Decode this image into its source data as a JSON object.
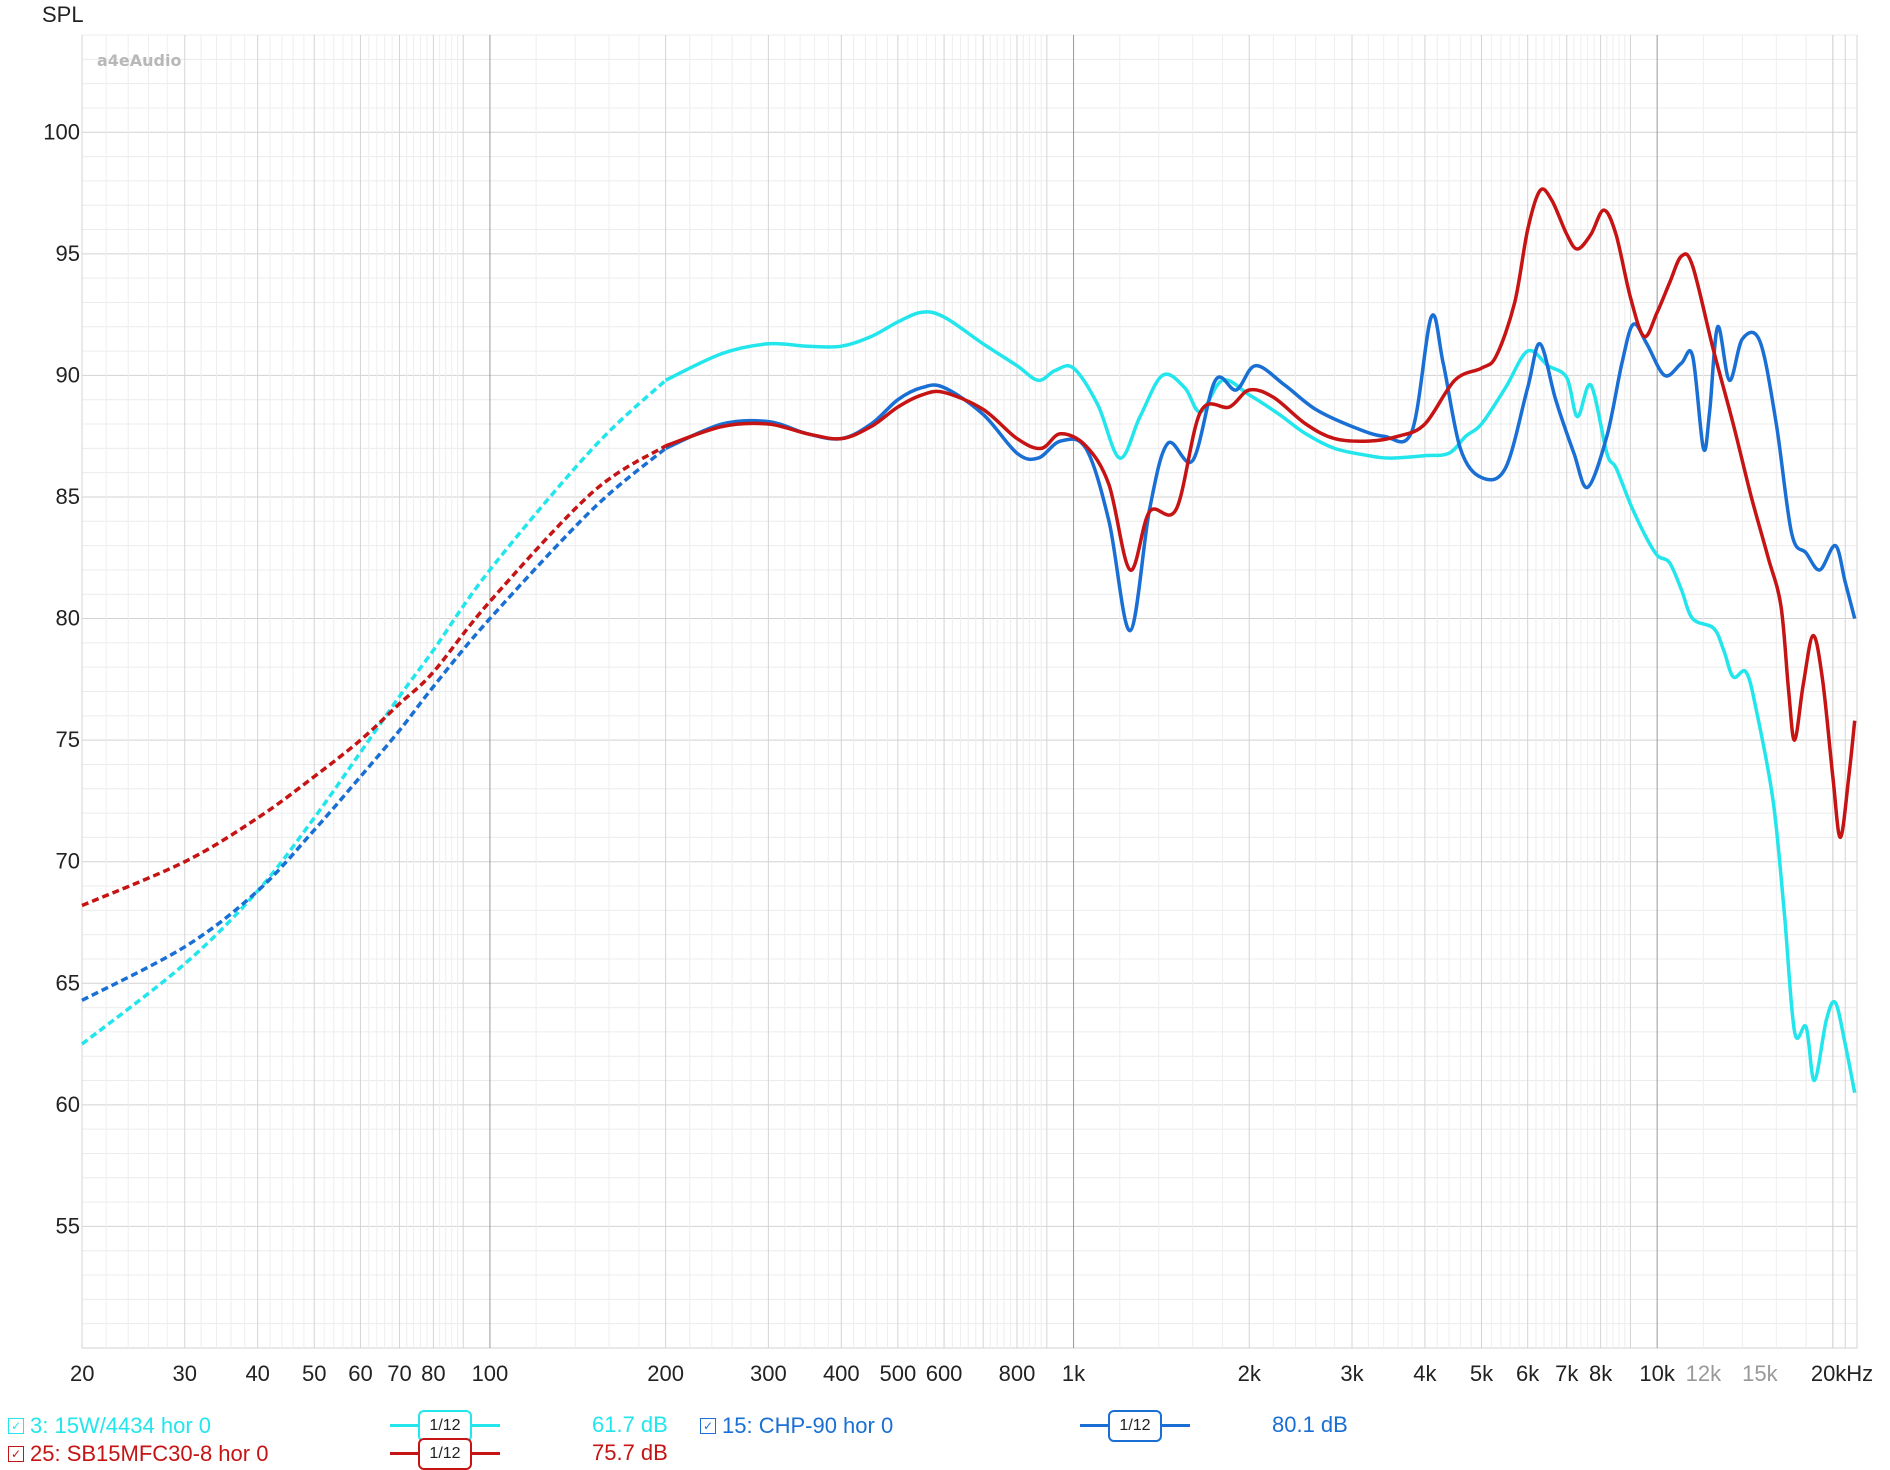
{
  "chart_data": {
    "type": "line",
    "title": "",
    "ylabel": "SPL",
    "xlabel": "",
    "x_scale": "log",
    "xlim": [
      20,
      22000
    ],
    "ylim": [
      50,
      104
    ],
    "yticks": [
      55,
      60,
      65,
      70,
      75,
      80,
      85,
      90,
      95,
      100
    ],
    "ytick_labels": [
      "55",
      "60",
      "65",
      "70",
      "75",
      "80",
      "85",
      "90",
      "95",
      "100"
    ],
    "xticks": [
      20,
      30,
      40,
      50,
      60,
      70,
      80,
      100,
      200,
      300,
      400,
      500,
      600,
      800,
      1000,
      2000,
      3000,
      4000,
      5000,
      6000,
      7000,
      8000,
      10000,
      12000,
      15000,
      20000
    ],
    "xtick_labels": [
      "20",
      "30",
      "40",
      "50",
      "60",
      "70",
      "80",
      "100",
      "200",
      "300",
      "400",
      "500",
      "600",
      "800",
      "1k",
      "2k",
      "3k",
      "4k",
      "5k",
      "6k",
      "7k",
      "8k",
      "10k",
      "12k",
      "15k",
      "20kHz"
    ],
    "minor_tick_labels": [
      "12k",
      "15k"
    ],
    "grid": true,
    "logo": "a4eAudio",
    "legend_position": "bottom",
    "series": [
      {
        "name": "3: 15W/4434 hor 0",
        "color": "#22e6ec",
        "smoothing": "1/12",
        "level": "61.7 dB",
        "dashed_until": 180,
        "points": [
          [
            20,
            62.5
          ],
          [
            30,
            65.8
          ],
          [
            40,
            68.8
          ],
          [
            50,
            71.8
          ],
          [
            60,
            74.5
          ],
          [
            70,
            76.8
          ],
          [
            80,
            78.7
          ],
          [
            100,
            82
          ],
          [
            150,
            87
          ],
          [
            200,
            89.8
          ],
          [
            250,
            90.9
          ],
          [
            300,
            91.3
          ],
          [
            350,
            91.2
          ],
          [
            400,
            91.2
          ],
          [
            450,
            91.6
          ],
          [
            500,
            92.2
          ],
          [
            550,
            92.6
          ],
          [
            600,
            92.4
          ],
          [
            700,
            91.3
          ],
          [
            800,
            90.4
          ],
          [
            870,
            89.8
          ],
          [
            930,
            90.2
          ],
          [
            1000,
            90.3
          ],
          [
            1100,
            88.8
          ],
          [
            1200,
            86.6
          ],
          [
            1300,
            88.3
          ],
          [
            1420,
            90
          ],
          [
            1550,
            89.5
          ],
          [
            1650,
            88.5
          ],
          [
            1800,
            89.8
          ],
          [
            2000,
            89.2
          ],
          [
            2250,
            88.4
          ],
          [
            2500,
            87.6
          ],
          [
            2800,
            87
          ],
          [
            3200,
            86.7
          ],
          [
            3500,
            86.6
          ],
          [
            4000,
            86.7
          ],
          [
            4400,
            86.8
          ],
          [
            4700,
            87.5
          ],
          [
            5000,
            88
          ],
          [
            5500,
            89.5
          ],
          [
            6000,
            91
          ],
          [
            6500,
            90.4
          ],
          [
            7000,
            89.9
          ],
          [
            7300,
            88.3
          ],
          [
            7700,
            89.6
          ],
          [
            8200,
            86.8
          ],
          [
            8500,
            86.2
          ],
          [
            9000,
            84.7
          ],
          [
            9500,
            83.5
          ],
          [
            10000,
            82.6
          ],
          [
            10500,
            82.3
          ],
          [
            11000,
            81.2
          ],
          [
            11500,
            80
          ],
          [
            12500,
            79.6
          ],
          [
            13000,
            78.7
          ],
          [
            13500,
            77.6
          ],
          [
            14200,
            77.8
          ],
          [
            14800,
            76.2
          ],
          [
            15800,
            72.5
          ],
          [
            16500,
            68
          ],
          [
            17200,
            63
          ],
          [
            18000,
            63.2
          ],
          [
            18600,
            61
          ],
          [
            19500,
            63.5
          ],
          [
            20200,
            64.2
          ],
          [
            21000,
            62.5
          ],
          [
            21800,
            60.5
          ]
        ]
      },
      {
        "name": "15: CHP-90 hor 0",
        "color": "#1a6fd4",
        "smoothing": "1/12",
        "level": "80.1 dB",
        "dashed_until": 200,
        "points": [
          [
            20,
            64.3
          ],
          [
            30,
            66.5
          ],
          [
            40,
            68.8
          ],
          [
            50,
            71.3
          ],
          [
            60,
            73.5
          ],
          [
            70,
            75.4
          ],
          [
            80,
            77.2
          ],
          [
            100,
            80
          ],
          [
            150,
            84.5
          ],
          [
            200,
            87
          ],
          [
            250,
            88
          ],
          [
            300,
            88.1
          ],
          [
            350,
            87.6
          ],
          [
            400,
            87.4
          ],
          [
            450,
            88
          ],
          [
            500,
            89
          ],
          [
            550,
            89.5
          ],
          [
            600,
            89.5
          ],
          [
            700,
            88.4
          ],
          [
            800,
            86.8
          ],
          [
            870,
            86.6
          ],
          [
            950,
            87.3
          ],
          [
            1050,
            87
          ],
          [
            1150,
            84
          ],
          [
            1250,
            79.5
          ],
          [
            1350,
            84.5
          ],
          [
            1450,
            87.2
          ],
          [
            1600,
            86.5
          ],
          [
            1750,
            89.8
          ],
          [
            1900,
            89.4
          ],
          [
            2050,
            90.4
          ],
          [
            2300,
            89.6
          ],
          [
            2600,
            88.6
          ],
          [
            3000,
            87.9
          ],
          [
            3400,
            87.5
          ],
          [
            3800,
            87.7
          ],
          [
            4100,
            92.4
          ],
          [
            4300,
            90.5
          ],
          [
            4600,
            87
          ],
          [
            5000,
            85.8
          ],
          [
            5500,
            86.2
          ],
          [
            6000,
            89.5
          ],
          [
            6300,
            91.3
          ],
          [
            6700,
            89
          ],
          [
            7200,
            86.8
          ],
          [
            7600,
            85.4
          ],
          [
            8200,
            87.5
          ],
          [
            8700,
            90.5
          ],
          [
            9100,
            92.1
          ],
          [
            9600,
            91.3
          ],
          [
            10300,
            90
          ],
          [
            11000,
            90.5
          ],
          [
            11500,
            90.8
          ],
          [
            12000,
            87
          ],
          [
            12300,
            88.5
          ],
          [
            12700,
            92
          ],
          [
            13300,
            89.8
          ],
          [
            14000,
            91.5
          ],
          [
            15000,
            91.4
          ],
          [
            16000,
            88
          ],
          [
            17000,
            83.5
          ],
          [
            18000,
            82.7
          ],
          [
            19000,
            82
          ],
          [
            20200,
            83
          ],
          [
            21000,
            81.5
          ],
          [
            21800,
            80
          ]
        ]
      },
      {
        "name": "25: SB15MFC30-8 hor 0",
        "color": "#c61414",
        "smoothing": "1/12",
        "level": "75.7 dB",
        "dashed_until": 180,
        "points": [
          [
            20,
            68.2
          ],
          [
            30,
            70
          ],
          [
            40,
            71.8
          ],
          [
            50,
            73.5
          ],
          [
            60,
            75
          ],
          [
            70,
            76.5
          ],
          [
            80,
            77.8
          ],
          [
            100,
            80.7
          ],
          [
            150,
            85.2
          ],
          [
            200,
            87.1
          ],
          [
            250,
            87.9
          ],
          [
            300,
            88
          ],
          [
            350,
            87.6
          ],
          [
            400,
            87.4
          ],
          [
            450,
            87.9
          ],
          [
            500,
            88.7
          ],
          [
            550,
            89.2
          ],
          [
            600,
            89.3
          ],
          [
            700,
            88.6
          ],
          [
            800,
            87.4
          ],
          [
            880,
            87
          ],
          [
            950,
            87.6
          ],
          [
            1050,
            87.1
          ],
          [
            1150,
            85.5
          ],
          [
            1250,
            82
          ],
          [
            1350,
            84.4
          ],
          [
            1500,
            84.5
          ],
          [
            1650,
            88.5
          ],
          [
            1850,
            88.7
          ],
          [
            2000,
            89.4
          ],
          [
            2200,
            89.1
          ],
          [
            2500,
            88
          ],
          [
            2800,
            87.4
          ],
          [
            3200,
            87.3
          ],
          [
            3600,
            87.5
          ],
          [
            4000,
            88
          ],
          [
            4500,
            89.8
          ],
          [
            5000,
            90.3
          ],
          [
            5300,
            90.8
          ],
          [
            5700,
            93
          ],
          [
            6000,
            96
          ],
          [
            6300,
            97.6
          ],
          [
            6600,
            97.2
          ],
          [
            7000,
            95.8
          ],
          [
            7300,
            95.2
          ],
          [
            7700,
            95.8
          ],
          [
            8100,
            96.8
          ],
          [
            8500,
            95.8
          ],
          [
            9000,
            93.2
          ],
          [
            9500,
            91.6
          ],
          [
            10000,
            92.6
          ],
          [
            10500,
            93.8
          ],
          [
            11000,
            94.9
          ],
          [
            11500,
            94.5
          ],
          [
            12500,
            91
          ],
          [
            13500,
            88
          ],
          [
            14500,
            85
          ],
          [
            15500,
            82.5
          ],
          [
            16300,
            80.5
          ],
          [
            16800,
            77
          ],
          [
            17200,
            75
          ],
          [
            17800,
            77.3
          ],
          [
            18500,
            79.3
          ],
          [
            19200,
            77.5
          ],
          [
            20000,
            73.5
          ],
          [
            20600,
            71
          ],
          [
            21300,
            73.5
          ],
          [
            21800,
            75.8
          ]
        ]
      }
    ]
  }
}
